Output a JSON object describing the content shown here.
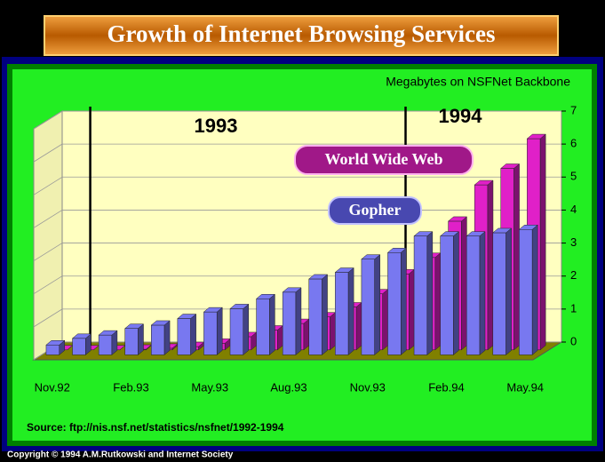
{
  "chart_data": {
    "type": "bar3d",
    "title": "Growth of Internet Browsing Services",
    "subtitle": "Megabytes on NSFNet Backbone",
    "annotations": [
      "1993",
      "1994"
    ],
    "source": "Source: ftp://nis.nsf.net/statistics/nsfnet/1992-1994",
    "copyright": "Copyright © 1994 A.M.Rutkowski and Internet Society",
    "categories": [
      "Nov.92",
      null,
      null,
      "Feb.93",
      null,
      null,
      "May.93",
      null,
      null,
      "Aug.93",
      null,
      null,
      "Nov.93",
      null,
      null,
      "Feb.94",
      null,
      null,
      "May.94"
    ],
    "series": [
      {
        "name": "World Wide Web",
        "color": "#e020c8",
        "values": [
          0,
          0,
          0,
          0.02,
          0.05,
          0.1,
          0.2,
          0.4,
          0.6,
          0.8,
          1.0,
          1.3,
          1.7,
          2.3,
          2.8,
          3.9,
          5.0,
          5.5,
          6.4
        ]
      },
      {
        "name": "Gopher",
        "color": "#7878f0",
        "values": [
          0.3,
          0.5,
          0.6,
          0.8,
          0.9,
          1.1,
          1.3,
          1.4,
          1.7,
          1.9,
          2.3,
          2.5,
          2.9,
          3.1,
          3.6,
          3.6,
          3.6,
          3.7,
          3.8
        ]
      }
    ],
    "ylim": [
      0,
      7
    ],
    "yticks": [
      0,
      1,
      2,
      3,
      4,
      5,
      6,
      7
    ],
    "grid": true
  }
}
